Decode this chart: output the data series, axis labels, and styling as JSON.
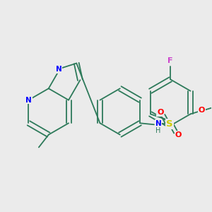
{
  "background_color": "#ebebeb",
  "colors": {
    "bond": "#2d7a5a",
    "N": "#0000ff",
    "O": "#ff0000",
    "S": "#cccc00",
    "F": "#cc44cc"
  },
  "figsize": [
    3.0,
    3.0
  ],
  "dpi": 100
}
